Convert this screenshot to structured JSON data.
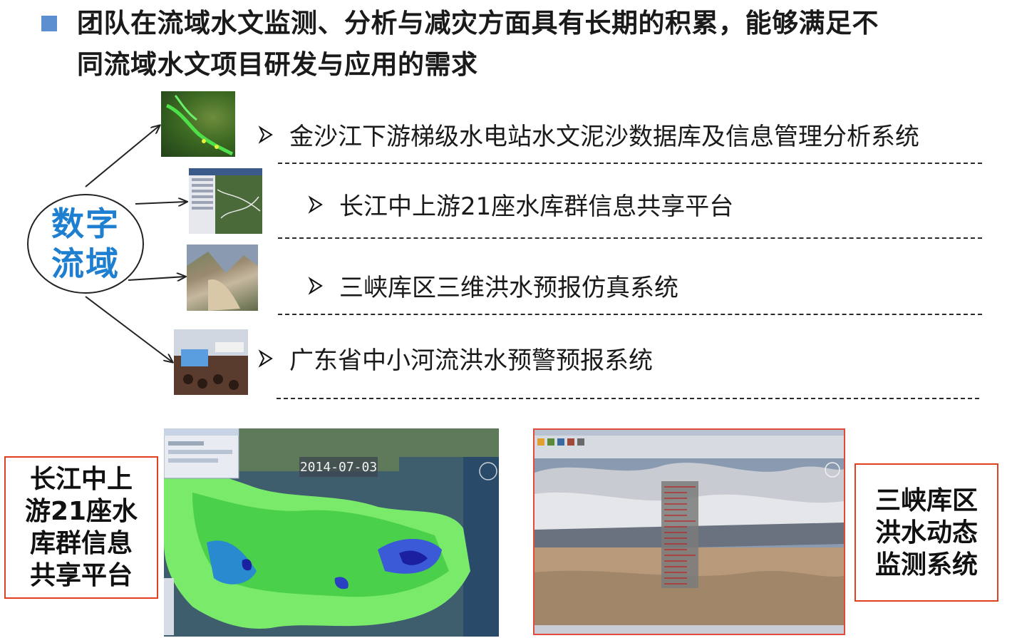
{
  "headline": {
    "line1": "团队在流域水文监测、分析与减灾方面具有长期的积累，能够满足不",
    "line2": "同流域水文项目研发与应用的需求"
  },
  "hub": {
    "line1": "数字",
    "line2": "流域"
  },
  "projects": [
    {
      "label": "金沙江下游梯级水电站水文泥沙数据库及信息管理分析系统"
    },
    {
      "label": "长江中上游21座水库群信息共享平台"
    },
    {
      "label": "三峡库区三维洪水预报仿真系统"
    },
    {
      "label": "广东省中小河流洪水预警预报系统"
    }
  ],
  "callout_left": {
    "line1": "长江中上",
    "line2": "游21座水",
    "line3": "库群信息",
    "line4": "共享平台"
  },
  "callout_right": {
    "line1": "三峡库区",
    "line2": "洪水动态",
    "line3": "监测系统"
  },
  "rain_map": {
    "date": "2014-07-03"
  },
  "colors": {
    "bullet": "#5b8fd0",
    "hub_text": "#1e7fd0",
    "callout_border": "#e0401e",
    "screenshot_border": "#e24a3a"
  }
}
